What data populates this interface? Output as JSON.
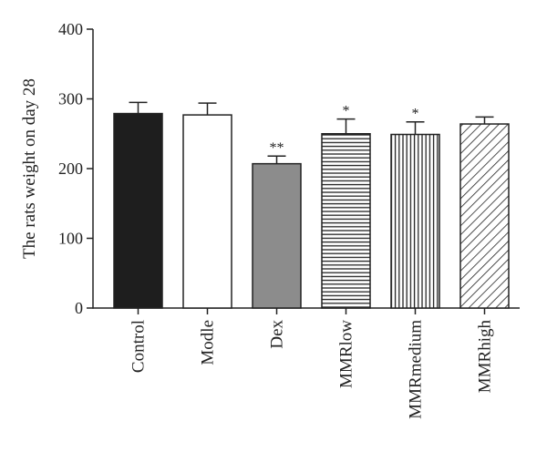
{
  "chart_data": {
    "type": "bar",
    "title": "",
    "xlabel": "",
    "ylabel": "The rats weight on day 28",
    "ylim": [
      0,
      400
    ],
    "yticks": [
      0,
      100,
      200,
      300,
      400
    ],
    "grid": false,
    "legend": "none",
    "categories": [
      "Control",
      "Modle",
      "Dex",
      "MMRlow",
      "MMRmedium",
      "MMRhigh"
    ],
    "values": [
      279,
      277,
      207,
      250,
      249,
      264
    ],
    "errors": [
      16,
      17,
      11,
      21,
      18,
      10
    ],
    "annotations": [
      "",
      "",
      "**",
      "*",
      "*",
      ""
    ],
    "fills": [
      "solid-black",
      "white",
      "solid-gray",
      "horizontal-lines",
      "vertical-lines",
      "diagonal-lines"
    ],
    "colors": {
      "axis": "#222222",
      "black": "#1e1e1e",
      "gray": "#8c8c8c"
    }
  }
}
